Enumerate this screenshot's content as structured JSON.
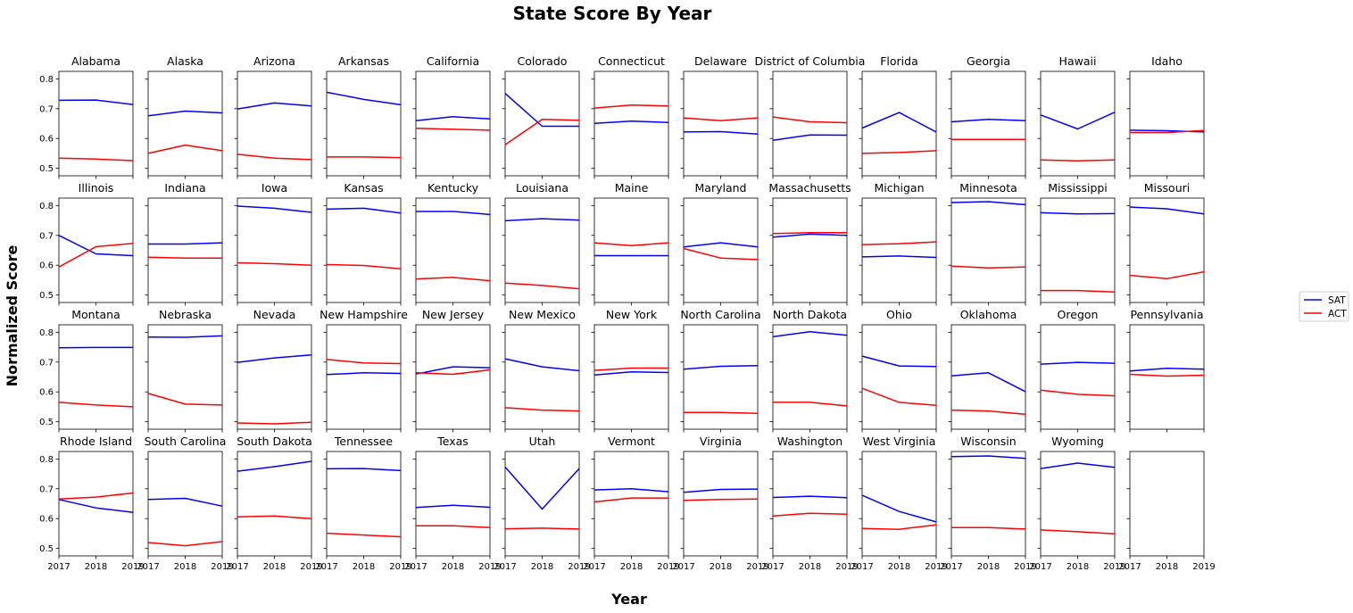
{
  "chart_data": {
    "type": "line",
    "title": "State Score By Year",
    "xlabel": "Year",
    "ylabel": "Normalized Score",
    "x": [
      2017,
      2018,
      2019
    ],
    "ylim": [
      0.475,
      0.825
    ],
    "yticks": [
      0.5,
      0.6,
      0.7,
      0.8
    ],
    "legend": {
      "position": "right",
      "entries": [
        {
          "name": "SAT",
          "color": "#0000ff"
        },
        {
          "name": "ACT",
          "color": "#ff0000"
        }
      ]
    },
    "grid": false,
    "panels": [
      {
        "state": "Alabama",
        "SAT": [
          0.728,
          0.729,
          0.714
        ],
        "ACT": [
          0.534,
          0.531,
          0.526
        ]
      },
      {
        "state": "Alaska",
        "SAT": [
          0.676,
          0.692,
          0.686
        ],
        "ACT": [
          0.55,
          0.578,
          0.559
        ]
      },
      {
        "state": "Arizona",
        "SAT": [
          0.699,
          0.719,
          0.709
        ],
        "ACT": [
          0.547,
          0.534,
          0.529
        ]
      },
      {
        "state": "Arkansas",
        "SAT": [
          0.755,
          0.731,
          0.713
        ],
        "ACT": [
          0.538,
          0.538,
          0.536
        ]
      },
      {
        "state": "California",
        "SAT": [
          0.66,
          0.673,
          0.666
        ],
        "ACT": [
          0.634,
          0.631,
          0.628
        ]
      },
      {
        "state": "Colorado",
        "SAT": [
          0.751,
          0.641,
          0.641
        ],
        "ACT": [
          0.579,
          0.664,
          0.661
        ]
      },
      {
        "state": "Connecticut",
        "SAT": [
          0.651,
          0.658,
          0.654
        ],
        "ACT": [
          0.702,
          0.712,
          0.709
        ]
      },
      {
        "state": "Delaware",
        "SAT": [
          0.622,
          0.623,
          0.615
        ],
        "ACT": [
          0.669,
          0.66,
          0.669
        ]
      },
      {
        "state": "District of Columbia",
        "SAT": [
          0.594,
          0.612,
          0.611
        ],
        "ACT": [
          0.672,
          0.656,
          0.653
        ]
      },
      {
        "state": "Florida",
        "SAT": [
          0.635,
          0.687,
          0.622
        ],
        "ACT": [
          0.55,
          0.553,
          0.559
        ]
      },
      {
        "state": "Georgia",
        "SAT": [
          0.656,
          0.664,
          0.66
        ],
        "ACT": [
          0.597,
          0.597,
          0.597
        ]
      },
      {
        "state": "Hawaii",
        "SAT": [
          0.679,
          0.632,
          0.688
        ],
        "ACT": [
          0.528,
          0.525,
          0.528
        ]
      },
      {
        "state": "Idaho",
        "SAT": [
          0.628,
          0.626,
          0.622
        ],
        "ACT": [
          0.62,
          0.62,
          0.627
        ]
      },
      {
        "state": "Illinois",
        "SAT": [
          0.7,
          0.638,
          0.632
        ],
        "ACT": [
          0.594,
          0.662,
          0.673
        ]
      },
      {
        "state": "Indiana",
        "SAT": [
          0.671,
          0.671,
          0.675
        ],
        "ACT": [
          0.627,
          0.624,
          0.624
        ]
      },
      {
        "state": "Iowa",
        "SAT": [
          0.798,
          0.791,
          0.777
        ],
        "ACT": [
          0.608,
          0.605,
          0.6
        ]
      },
      {
        "state": "Kansas",
        "SAT": [
          0.788,
          0.791,
          0.775
        ],
        "ACT": [
          0.602,
          0.599,
          0.588
        ]
      },
      {
        "state": "Kentucky",
        "SAT": [
          0.78,
          0.78,
          0.77
        ],
        "ACT": [
          0.554,
          0.559,
          0.548
        ]
      },
      {
        "state": "Louisiana",
        "SAT": [
          0.749,
          0.756,
          0.751
        ],
        "ACT": [
          0.54,
          0.532,
          0.521
        ]
      },
      {
        "state": "Maine",
        "SAT": [
          0.632,
          0.632,
          0.632
        ],
        "ACT": [
          0.675,
          0.666,
          0.675
        ]
      },
      {
        "state": "Maryland",
        "SAT": [
          0.661,
          0.675,
          0.661
        ],
        "ACT": [
          0.656,
          0.624,
          0.619
        ]
      },
      {
        "state": "Massachusetts",
        "SAT": [
          0.694,
          0.704,
          0.7
        ],
        "ACT": [
          0.706,
          0.709,
          0.709
        ]
      },
      {
        "state": "Michigan",
        "SAT": [
          0.628,
          0.631,
          0.626
        ],
        "ACT": [
          0.669,
          0.672,
          0.678
        ]
      },
      {
        "state": "Minnesota",
        "SAT": [
          0.81,
          0.813,
          0.803
        ],
        "ACT": [
          0.597,
          0.591,
          0.594
        ]
      },
      {
        "state": "Mississippi",
        "SAT": [
          0.776,
          0.772,
          0.773
        ],
        "ACT": [
          0.515,
          0.515,
          0.51
        ]
      },
      {
        "state": "Missouri",
        "SAT": [
          0.795,
          0.789,
          0.772
        ],
        "ACT": [
          0.566,
          0.555,
          0.578
        ]
      },
      {
        "state": "Montana",
        "SAT": [
          0.748,
          0.749,
          0.749
        ],
        "ACT": [
          0.565,
          0.556,
          0.55
        ]
      },
      {
        "state": "Nebraska",
        "SAT": [
          0.784,
          0.783,
          0.788
        ],
        "ACT": [
          0.595,
          0.559,
          0.556
        ]
      },
      {
        "state": "Nevada",
        "SAT": [
          0.699,
          0.714,
          0.724
        ],
        "ACT": [
          0.496,
          0.493,
          0.498
        ]
      },
      {
        "state": "New Hampshire",
        "SAT": [
          0.658,
          0.664,
          0.662
        ],
        "ACT": [
          0.709,
          0.697,
          0.695
        ]
      },
      {
        "state": "New Jersey",
        "SAT": [
          0.66,
          0.684,
          0.681
        ],
        "ACT": [
          0.664,
          0.659,
          0.674
        ]
      },
      {
        "state": "New Mexico",
        "SAT": [
          0.711,
          0.684,
          0.671
        ],
        "ACT": [
          0.547,
          0.539,
          0.536
        ]
      },
      {
        "state": "New York",
        "SAT": [
          0.657,
          0.667,
          0.665
        ],
        "ACT": [
          0.672,
          0.68,
          0.68
        ]
      },
      {
        "state": "North Carolina",
        "SAT": [
          0.676,
          0.686,
          0.688
        ],
        "ACT": [
          0.531,
          0.531,
          0.528
        ]
      },
      {
        "state": "North Dakota",
        "SAT": [
          0.785,
          0.802,
          0.79
        ],
        "ACT": [
          0.565,
          0.565,
          0.553
        ]
      },
      {
        "state": "Ohio",
        "SAT": [
          0.72,
          0.687,
          0.685
        ],
        "ACT": [
          0.612,
          0.565,
          0.555
        ]
      },
      {
        "state": "Oklahoma",
        "SAT": [
          0.654,
          0.664,
          0.601
        ],
        "ACT": [
          0.539,
          0.536,
          0.525
        ]
      },
      {
        "state": "Oregon",
        "SAT": [
          0.693,
          0.699,
          0.696
        ],
        "ACT": [
          0.606,
          0.592,
          0.587
        ]
      },
      {
        "state": "Pennsylvania",
        "SAT": [
          0.67,
          0.679,
          0.676
        ],
        "ACT": [
          0.659,
          0.653,
          0.656
        ]
      },
      {
        "state": "Rhode Island",
        "SAT": [
          0.664,
          0.636,
          0.621
        ],
        "ACT": [
          0.666,
          0.672,
          0.686
        ]
      },
      {
        "state": "South Carolina",
        "SAT": [
          0.664,
          0.668,
          0.642
        ],
        "ACT": [
          0.52,
          0.509,
          0.523
        ]
      },
      {
        "state": "South Dakota",
        "SAT": [
          0.759,
          0.774,
          0.792
        ],
        "ACT": [
          0.606,
          0.609,
          0.6
        ]
      },
      {
        "state": "Tennessee",
        "SAT": [
          0.767,
          0.768,
          0.761
        ],
        "ACT": [
          0.551,
          0.545,
          0.539
        ]
      },
      {
        "state": "Texas",
        "SAT": [
          0.637,
          0.645,
          0.638
        ],
        "ACT": [
          0.576,
          0.576,
          0.57
        ]
      },
      {
        "state": "Utah",
        "SAT": [
          0.773,
          0.632,
          0.768
        ],
        "ACT": [
          0.566,
          0.568,
          0.565
        ]
      },
      {
        "state": "Vermont",
        "SAT": [
          0.696,
          0.7,
          0.69
        ],
        "ACT": [
          0.656,
          0.669,
          0.669
        ]
      },
      {
        "state": "Virginia",
        "SAT": [
          0.688,
          0.698,
          0.699
        ],
        "ACT": [
          0.661,
          0.664,
          0.666
        ]
      },
      {
        "state": "Washington",
        "SAT": [
          0.671,
          0.675,
          0.67
        ],
        "ACT": [
          0.609,
          0.618,
          0.615
        ]
      },
      {
        "state": "West Virginia",
        "SAT": [
          0.678,
          0.624,
          0.589
        ],
        "ACT": [
          0.567,
          0.564,
          0.579
        ]
      },
      {
        "state": "Wisconsin",
        "SAT": [
          0.808,
          0.81,
          0.802
        ],
        "ACT": [
          0.57,
          0.57,
          0.565
        ]
      },
      {
        "state": "Wyoming",
        "SAT": [
          0.768,
          0.786,
          0.772
        ],
        "ACT": [
          0.562,
          0.556,
          0.549
        ]
      },
      {
        "state": "",
        "SAT": [],
        "ACT": []
      }
    ]
  }
}
